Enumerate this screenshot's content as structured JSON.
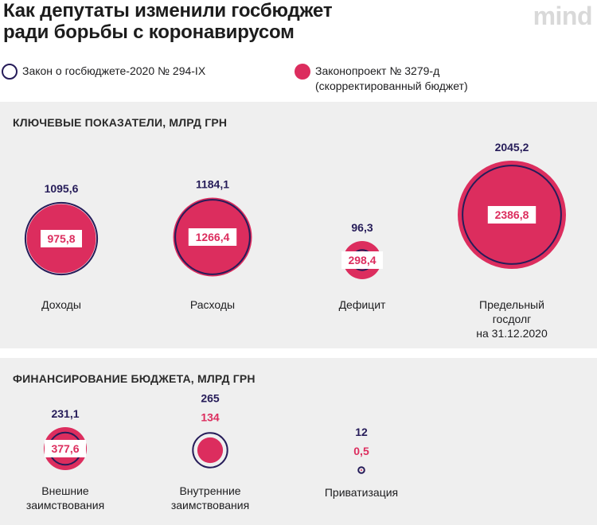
{
  "header": {
    "title_line1": "Как депутаты изменили госбюджет",
    "title_line2": "ради борьбы с коронавирусом",
    "brand": "mind"
  },
  "legend": {
    "law_2020": "Закон о госбюджете-2020 № 294-IX",
    "bill_line1": "Законопроект № 3279-д",
    "bill_line2": "(скорректированный бюджет)"
  },
  "colors": {
    "law_2020": "#261c59",
    "bill": "#dc2d5e",
    "panel": "#efefef"
  },
  "chart_data": [
    {
      "type": "bubble",
      "title": "КЛЮЧЕВЫЕ ПОКАЗАТЕЛИ, МЛРД ГРН",
      "series": [
        {
          "name": "Закон о госбюджете-2020 № 294-IX"
        },
        {
          "name": "Законопроект № 3279-д (скорректированный бюджет)"
        }
      ],
      "items": [
        {
          "category": [
            "Доходы"
          ],
          "law_2020": 1095.6,
          "bill": 975.8,
          "law_label": "1095,6",
          "bill_label": "975,8"
        },
        {
          "category": [
            "Расходы"
          ],
          "law_2020": 1184.1,
          "bill": 1266.4,
          "law_label": "1184,1",
          "bill_label": "1266,4"
        },
        {
          "category": [
            "Дефицит"
          ],
          "law_2020": 96.3,
          "bill": 298.4,
          "law_label": "96,3",
          "bill_label": "298,4"
        },
        {
          "category": [
            "Предельный",
            "госдолг",
            "на 31.12.2020"
          ],
          "law_2020": 2045.2,
          "bill": 2386.8,
          "law_label": "2045,2",
          "bill_label": "2386,8"
        }
      ]
    },
    {
      "type": "bubble",
      "title": "ФИНАНСИРОВАНИЕ БЮДЖЕТА, МЛРД ГРН",
      "series": [
        {
          "name": "Закон о госбюджете-2020 № 294-IX"
        },
        {
          "name": "Законопроект № 3279-д (скорректированный бюджет)"
        }
      ],
      "items": [
        {
          "category": [
            "Внешние",
            "заимствования"
          ],
          "law_2020": 231.1,
          "bill": 377.6,
          "law_label": "231,1",
          "bill_label": "377,6"
        },
        {
          "category": [
            "Внутренние",
            "заимствования"
          ],
          "law_2020": 265,
          "bill": 134,
          "law_label": "265",
          "bill_label": "134"
        },
        {
          "category": [
            "Приватизация"
          ],
          "law_2020": 12,
          "bill": 0.5,
          "law_label": "12",
          "bill_label": "0,5"
        }
      ]
    }
  ]
}
